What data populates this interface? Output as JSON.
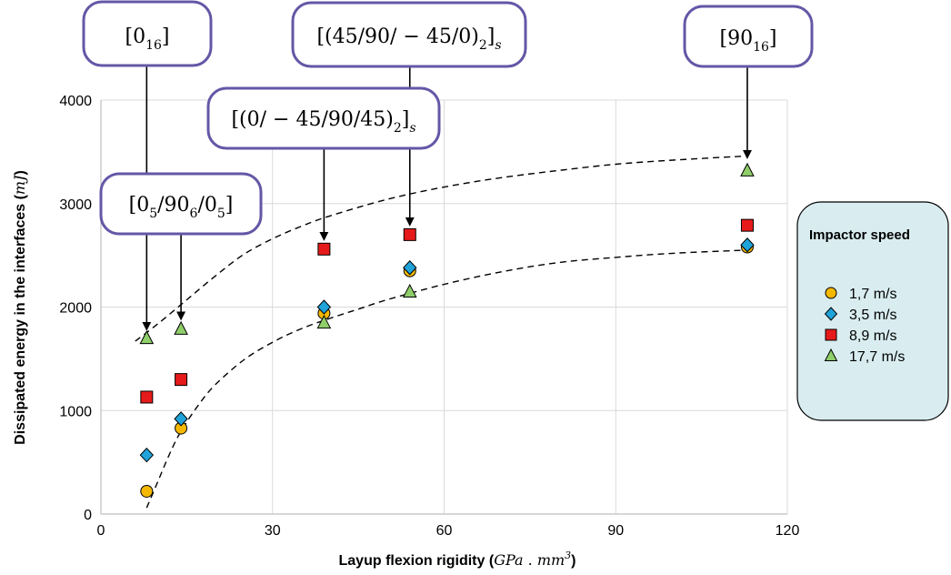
{
  "chart_data": {
    "type": "scatter",
    "xlabel_text": "Layup flexion rigidity (",
    "xlabel_unit": "GPa . mm",
    "xlabel_unit_exp": "3",
    "xlabel_close": ")",
    "ylabel_text": "Dissipated energy in the interfaces (",
    "ylabel_unit": "mJ",
    "ylabel_close": ")",
    "xlim": [
      0,
      120
    ],
    "ylim": [
      0,
      4000
    ],
    "xticks": [
      "0",
      "30",
      "60",
      "90",
      "120"
    ],
    "yticks": [
      "0",
      "1000",
      "2000",
      "3000",
      "4000"
    ],
    "grid": true,
    "legend": {
      "title": "Impactor speed",
      "placement": "right"
    },
    "series": [
      {
        "name": "1,7 m/s",
        "marker": "circle",
        "color": "#f5b800",
        "x": [
          8,
          14,
          39,
          54,
          113
        ],
        "y": [
          220,
          830,
          1940,
          2350,
          2580
        ]
      },
      {
        "name": "3,5 m/s",
        "marker": "diamond",
        "color": "#1fa3d9",
        "x": [
          8,
          14,
          39,
          54,
          113
        ],
        "y": [
          570,
          920,
          2000,
          2380,
          2600
        ]
      },
      {
        "name": "8,9 m/s",
        "marker": "square",
        "color": "#e61a1a",
        "x": [
          8,
          14,
          39,
          54,
          113
        ],
        "y": [
          1130,
          1300,
          2560,
          2700,
          2790
        ]
      },
      {
        "name": "17,7 m/s",
        "marker": "triangle",
        "color": "#8fce6a",
        "x": [
          8,
          14,
          39,
          54,
          113
        ],
        "y": [
          1700,
          1790,
          1850,
          2150,
          3320
        ]
      }
    ],
    "trend_upper": {
      "x": [
        6,
        10,
        15,
        20,
        25,
        30,
        35,
        40,
        50,
        60,
        70,
        80,
        90,
        100,
        113
      ],
      "y": [
        1670,
        1840,
        2070,
        2300,
        2510,
        2660,
        2780,
        2880,
        3040,
        3160,
        3250,
        3320,
        3380,
        3420,
        3460
      ]
    },
    "trend_lower": {
      "x": [
        8,
        10,
        12,
        14,
        17,
        20,
        25,
        30,
        35,
        40,
        45,
        50,
        60,
        70,
        80,
        90,
        100,
        113
      ],
      "y": [
        60,
        320,
        580,
        800,
        1050,
        1250,
        1490,
        1660,
        1790,
        1890,
        1980,
        2070,
        2220,
        2340,
        2430,
        2480,
        2520,
        2550
      ]
    },
    "annotations": [
      {
        "id": "a016",
        "base": "[0",
        "sub": "16",
        "tail": "]",
        "point_x": 8,
        "point_y": 1760
      },
      {
        "id": "a5906",
        "parts": [
          [
            "[0",
            ""
          ],
          [
            "5",
            "sub"
          ],
          [
            "/90",
            ""
          ],
          [
            "6",
            "sub"
          ],
          [
            "/0",
            ""
          ],
          [
            "5",
            "sub"
          ],
          [
            "]",
            ""
          ]
        ],
        "point_x": 8,
        "point_y": 1760
      },
      {
        "id": "aq1",
        "parts": [
          [
            "[(0/ − 45/90/45)",
            ""
          ],
          [
            "2",
            "sub"
          ],
          [
            "]",
            ""
          ],
          [
            "s",
            "subit"
          ]
        ],
        "point_x": 39,
        "point_y": 2620
      },
      {
        "id": "aq2",
        "parts": [
          [
            "[(45/90/ − 45/0)",
            ""
          ],
          [
            "2",
            "sub"
          ],
          [
            "]",
            ""
          ],
          [
            "s",
            "subit"
          ]
        ],
        "point_x": 54,
        "point_y": 2760
      },
      {
        "id": "a9016",
        "parts": [
          [
            "[90",
            ""
          ],
          [
            "16",
            "sub"
          ],
          [
            "]",
            ""
          ]
        ],
        "point_x": 113,
        "point_y": 3420
      }
    ]
  }
}
